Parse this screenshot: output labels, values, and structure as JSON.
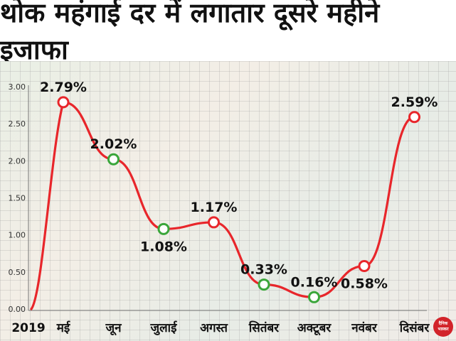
{
  "title": "थोक महंगाई दर में लगातार दूसरे महीने इजाफा",
  "logo_text": "दैनिक भास्कर",
  "colors": {
    "line": "#e8262b",
    "marker_red": "#e8262b",
    "marker_green": "#3aa63a"
  },
  "chart_data": {
    "type": "line",
    "title": "थोक महंगाई दर में लगातार दूसरे महीने इजाफा",
    "xlabel": "",
    "ylabel": "",
    "year_label": "2019",
    "categories": [
      "मई",
      "जून",
      "जुलाई",
      "अगस्त",
      "सितंबर",
      "अक्टूबर",
      "नवंबर",
      "दिसंबर"
    ],
    "values": [
      2.79,
      2.02,
      1.08,
      1.17,
      0.33,
      0.16,
      0.58,
      2.59
    ],
    "labels": [
      "2.79%",
      "2.02%",
      "1.08%",
      "1.17%",
      "0.33%",
      "0.16%",
      "0.58%",
      "2.59%"
    ],
    "marker_colors": [
      "red",
      "green",
      "green",
      "red",
      "green",
      "green",
      "red",
      "red"
    ],
    "yticks": [
      "0.00",
      "0.50",
      "1.00",
      "1.50",
      "2.00",
      "2.50",
      "3.00"
    ],
    "ylim": [
      0,
      3
    ],
    "grid": true
  }
}
